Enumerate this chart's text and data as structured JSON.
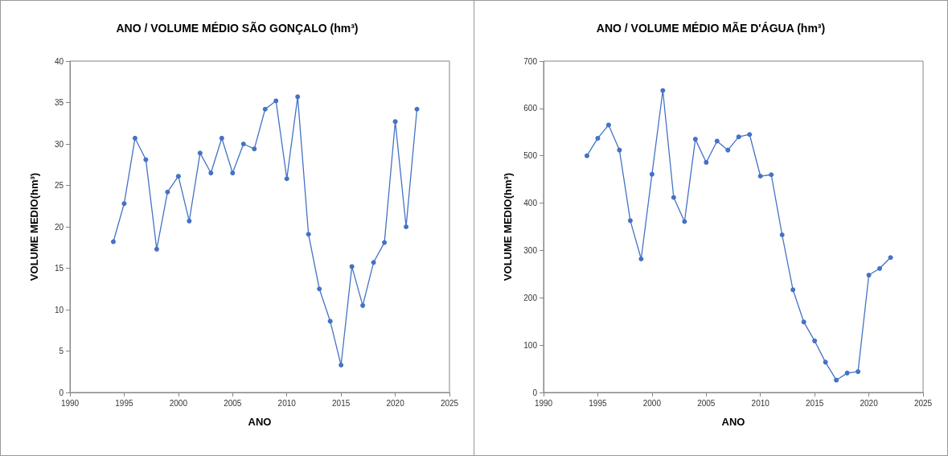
{
  "chart_data": [
    {
      "type": "line",
      "title": "ANO / VOLUME MÉDIO SÃO GONÇALO (hm³)",
      "xlabel": "ANO",
      "ylabel": "VOLUME MEDIO(hm³)",
      "x": [
        1994,
        1995,
        1996,
        1997,
        1998,
        1999,
        2000,
        2001,
        2002,
        2003,
        2004,
        2005,
        2006,
        2007,
        2008,
        2009,
        2010,
        2011,
        2012,
        2013,
        2014,
        2015,
        2016,
        2017,
        2018,
        2019,
        2020,
        2021,
        2022
      ],
      "series": [
        {
          "color": "#4472c4",
          "values": [
            18.2,
            22.8,
            30.7,
            28.1,
            17.3,
            24.2,
            26.1,
            20.7,
            28.9,
            26.5,
            30.7,
            26.5,
            30.0,
            29.4,
            34.2,
            35.2,
            25.8,
            35.7,
            19.1,
            12.5,
            8.6,
            3.3,
            15.2,
            10.5,
            15.7,
            18.1,
            32.7,
            20.0,
            34.2
          ]
        }
      ],
      "xlim": [
        1990,
        2025
      ],
      "xticks": [
        1990,
        1995,
        2000,
        2005,
        2010,
        2015,
        2020,
        2025
      ],
      "ylim": [
        0,
        40
      ],
      "yticks": [
        0,
        5,
        10,
        15,
        20,
        25,
        30,
        35,
        40
      ],
      "grid": false,
      "marker": "circle",
      "line_style": "solid"
    },
    {
      "type": "line",
      "title": "ANO / VOLUME MÉDIO MÃE D'ÁGUA (hm³)",
      "xlabel": "ANO",
      "ylabel": "VOLUME MEDIO(hm³)",
      "x": [
        1994,
        1995,
        1996,
        1997,
        1998,
        1999,
        2000,
        2001,
        2002,
        2003,
        2004,
        2005,
        2006,
        2007,
        2008,
        2009,
        2010,
        2011,
        2012,
        2013,
        2014,
        2015,
        2016,
        2017,
        2018,
        2019,
        2020,
        2021,
        2022
      ],
      "series": [
        {
          "color": "#4472c4",
          "values": [
            500,
            537,
            565,
            512,
            363,
            282,
            461,
            638,
            412,
            361,
            535,
            486,
            531,
            512,
            540,
            545,
            457,
            460,
            333,
            217,
            149,
            109,
            64,
            26,
            41,
            44,
            248,
            262,
            285
          ]
        }
      ],
      "xlim": [
        1990,
        2025
      ],
      "xticks": [
        1990,
        1995,
        2000,
        2005,
        2010,
        2015,
        2020,
        2025
      ],
      "ylim": [
        0,
        700
      ],
      "yticks": [
        0,
        100,
        200,
        300,
        400,
        500,
        600,
        700
      ],
      "grid": false,
      "marker": "circle",
      "line_style": "solid"
    }
  ]
}
